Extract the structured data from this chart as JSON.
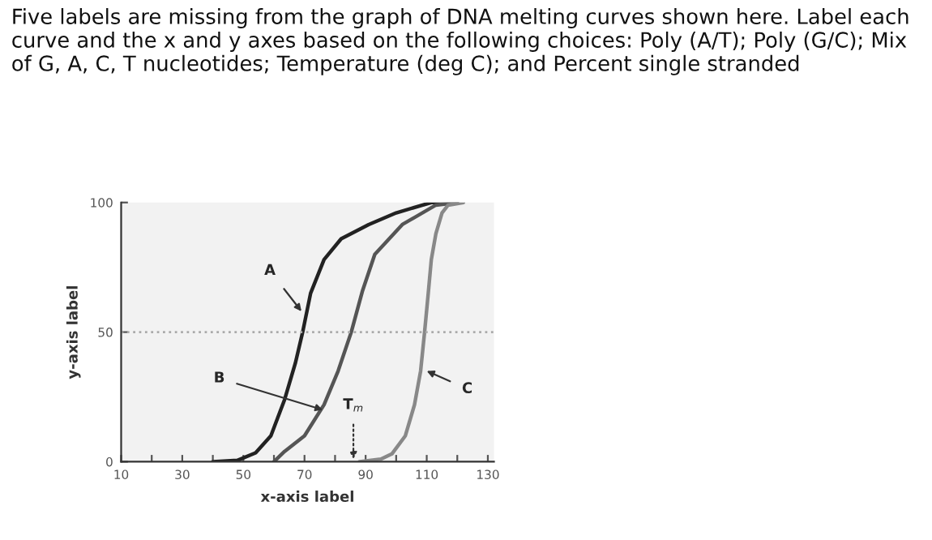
{
  "chart_data": {
    "type": "line",
    "title": "Five labels are missing from the graph of DNA melting curves shown here. Label each curve and the x and y axes based on the following choices: Poly (A/T); Poly (G/C); Mix of G, A, C, T nucleotides; Temperature (deg C); and Percent single stranded",
    "xlabel": "x-axis label",
    "ylabel": "y-axis label",
    "series": [
      {
        "color": "#222222",
        "x": [
          40,
          48,
          54,
          59,
          63.5,
          67,
          69.4,
          72,
          76.4,
          82,
          91,
          100,
          111.5,
          120
        ],
        "values": [
          0,
          0.5,
          3.4,
          10,
          24,
          38,
          50,
          65,
          78,
          86,
          91.5,
          96,
          100,
          100
        ]
      },
      {
        "color": "#555555",
        "x": [
          60,
          63.5,
          70,
          76.4,
          81,
          85.3,
          89,
          93,
          102,
          113,
          120
        ],
        "values": [
          0,
          4,
          10,
          22,
          35,
          50,
          66,
          80,
          91.5,
          99,
          100
        ]
      },
      {
        "color": "#888888",
        "x": [
          88,
          95,
          98.6,
          103,
          106,
          108,
          109.3,
          110.5,
          111.5,
          113,
          115,
          117,
          122
        ],
        "values": [
          0,
          1,
          3,
          10,
          22,
          35,
          50,
          65,
          78,
          88,
          96,
          99,
          100
        ]
      }
    ],
    "xlim": [
      10,
      132
    ],
    "ylim": [
      0,
      100
    ],
    "xticks": [
      10,
      {
        "value": 20,
        "label": null
      },
      30,
      {
        "value": 40,
        "label": null
      },
      50,
      {
        "value": 60,
        "label": null
      },
      70,
      {
        "value": 80,
        "label": null
      },
      90,
      {
        "value": 100,
        "label": null
      },
      110,
      {
        "value": 120,
        "label": null
      },
      130
    ],
    "yticks": [
      0,
      50,
      100
    ],
    "ref_lines": [
      {
        "axis": "y",
        "value": 50,
        "color": "#aaaaaa",
        "line_style": "dotted"
      }
    ],
    "annotations": [
      {
        "text": "A",
        "x": 69,
        "y": 58
      },
      {
        "text": "B",
        "x": 76,
        "y": 20
      },
      {
        "text": "C",
        "x": 110,
        "y": 35
      },
      {
        "text": "T$_{m}$",
        "x": 86,
        "y": 1
      }
    ],
    "grid": false,
    "legend": false,
    "marker": "none",
    "line_style": "solid"
  }
}
